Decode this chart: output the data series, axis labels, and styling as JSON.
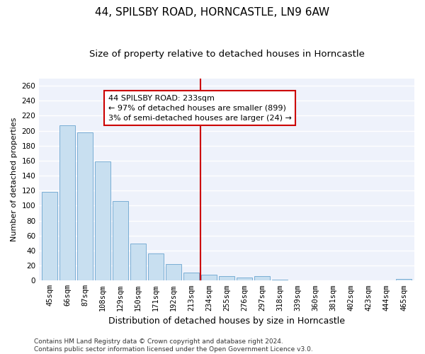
{
  "title": "44, SPILSBY ROAD, HORNCASTLE, LN9 6AW",
  "subtitle": "Size of property relative to detached houses in Horncastle",
  "xlabel": "Distribution of detached houses by size in Horncastle",
  "ylabel": "Number of detached properties",
  "categories": [
    "45sqm",
    "66sqm",
    "87sqm",
    "108sqm",
    "129sqm",
    "150sqm",
    "171sqm",
    "192sqm",
    "213sqm",
    "234sqm",
    "255sqm",
    "276sqm",
    "297sqm",
    "318sqm",
    "339sqm",
    "360sqm",
    "381sqm",
    "402sqm",
    "423sqm",
    "444sqm",
    "465sqm"
  ],
  "values": [
    118,
    207,
    198,
    159,
    106,
    49,
    36,
    22,
    11,
    8,
    6,
    4,
    6,
    1,
    0,
    0,
    0,
    0,
    0,
    0,
    2
  ],
  "bar_color": "#c8dff0",
  "bar_edge_color": "#7aaed4",
  "marker_bin_index": 8,
  "marker_color": "#cc0000",
  "annotation_line1": "44 SPILSBY ROAD: 233sqm",
  "annotation_line2": "← 97% of detached houses are smaller (899)",
  "annotation_line3": "3% of semi-detached houses are larger (24) →",
  "annotation_box_color": "#ffffff",
  "annotation_box_edge_color": "#cc0000",
  "ylim": [
    0,
    270
  ],
  "yticks": [
    0,
    20,
    40,
    60,
    80,
    100,
    120,
    140,
    160,
    180,
    200,
    220,
    240,
    260
  ],
  "background_color": "#eef2fb",
  "grid_color": "#ffffff",
  "footer_line1": "Contains HM Land Registry data © Crown copyright and database right 2024.",
  "footer_line2": "Contains public sector information licensed under the Open Government Licence v3.0.",
  "title_fontsize": 11,
  "subtitle_fontsize": 9.5,
  "xlabel_fontsize": 9,
  "ylabel_fontsize": 8,
  "tick_fontsize": 7.5,
  "annotation_fontsize": 8,
  "footer_fontsize": 6.5
}
